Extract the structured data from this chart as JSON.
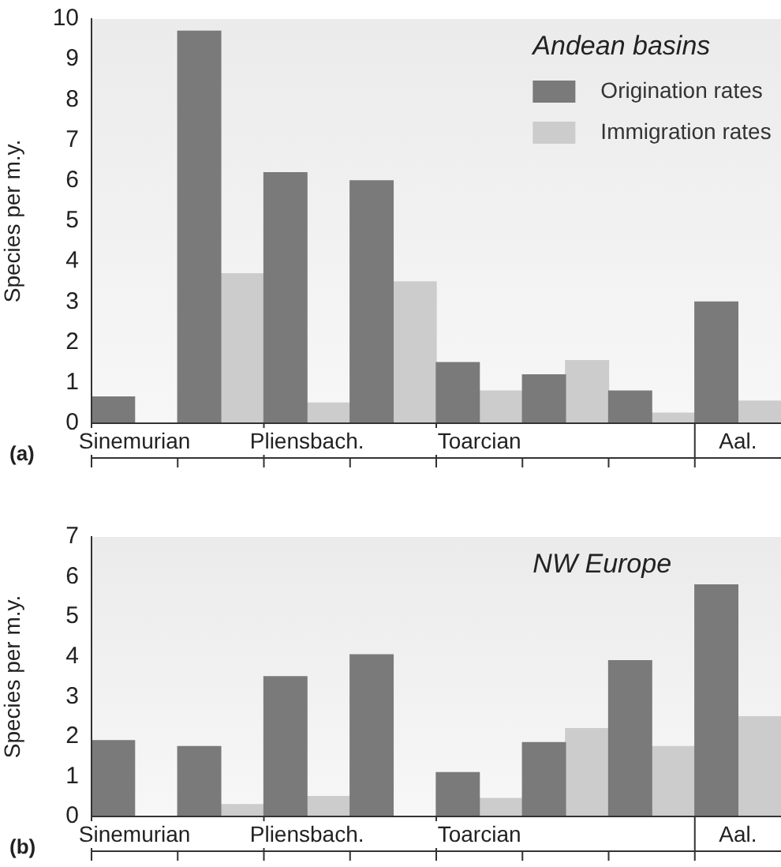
{
  "chart_data": [
    {
      "type": "bar",
      "title": "Andean basins",
      "ylabel": "Species per m.y.",
      "categories": [
        "Sinemurian",
        null,
        "Pliensbach.",
        null,
        "Toarcian",
        null,
        null,
        "Aal."
      ],
      "series": [
        {
          "name": "Origination rates",
          "color": "#7a7a7a",
          "values": [
            0.65,
            9.7,
            6.2,
            6.0,
            1.5,
            1.2,
            0.8,
            3.0
          ]
        },
        {
          "name": "Immigration rates",
          "color": "#cccccc",
          "values": [
            null,
            3.7,
            0.5,
            3.5,
            0.8,
            1.55,
            0.25,
            0.55
          ]
        }
      ],
      "ylim": [
        0,
        10
      ],
      "yticks": [
        0,
        1,
        2,
        3,
        4,
        5,
        6,
        7,
        8,
        9,
        10
      ],
      "grid": false,
      "legend": "top right",
      "annotations": [
        "(a)"
      ]
    },
    {
      "type": "bar",
      "title": "NW Europe",
      "ylabel": "Species per m.y.",
      "categories": [
        "Sinemurian",
        null,
        "Pliensbach.",
        null,
        "Toarcian",
        null,
        null,
        "Aal."
      ],
      "series": [
        {
          "color": "#7a7a7a",
          "values": [
            1.9,
            1.75,
            3.5,
            4.05,
            1.1,
            1.85,
            3.9,
            5.8
          ]
        },
        {
          "color": "#cccccc",
          "values": [
            null,
            0.3,
            0.5,
            null,
            0.45,
            2.2,
            1.75,
            2.5
          ]
        }
      ],
      "ylim": [
        0,
        7
      ],
      "yticks": [
        0,
        1,
        2,
        3,
        4,
        5,
        6,
        7
      ],
      "grid": false,
      "legend": false,
      "annotations": [
        "(b)"
      ]
    }
  ]
}
